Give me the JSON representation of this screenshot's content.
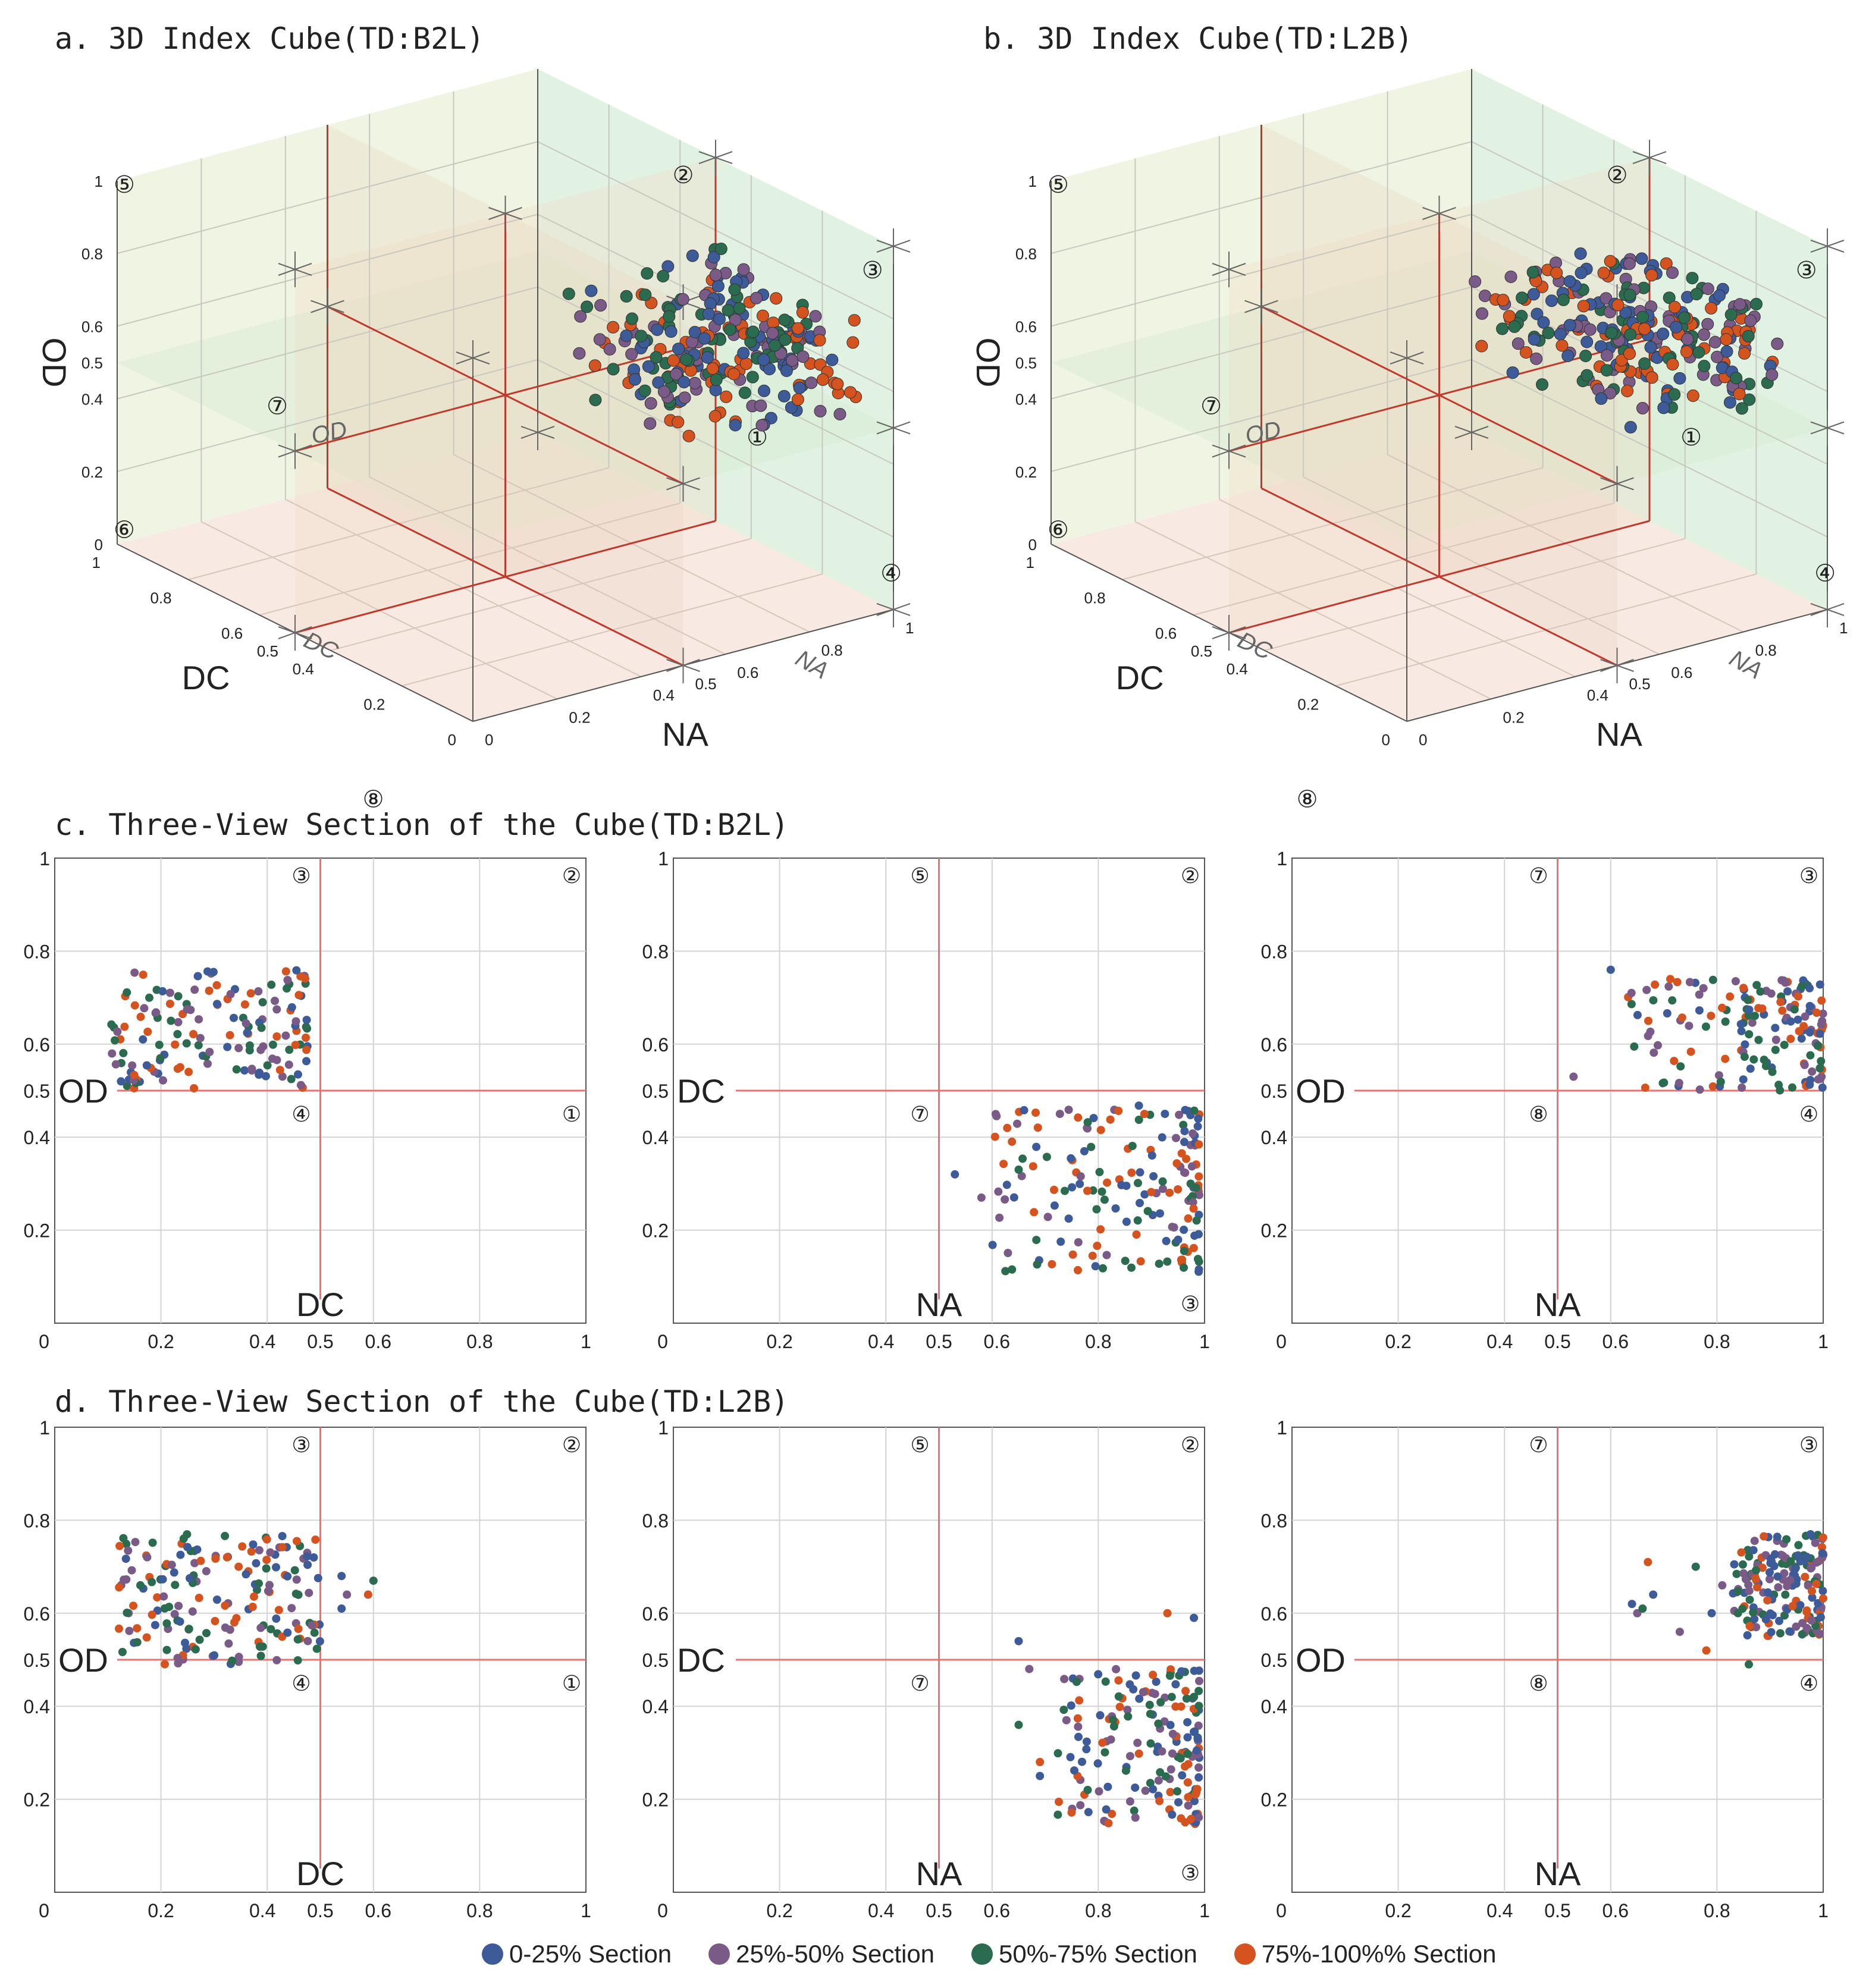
{
  "panels": {
    "a_title": "a. 3D Index Cube(TD:B2L)",
    "b_title": "b. 3D Index Cube(TD:L2B)",
    "c_title": "c. Three-View Section of the Cube(TD:B2L)",
    "d_title": "d. Three-View Section of the Cube(TD:L2B)"
  },
  "legend": [
    {
      "label": "0-25% Section",
      "color": "#3d5a99"
    },
    {
      "label": "25%-50% Section",
      "color": "#7a5a86"
    },
    {
      "label": "50%-75% Section",
      "color": "#2b6b4f"
    },
    {
      "label": "75%-100%% Section",
      "color": "#d4531e"
    }
  ],
  "chart_data": [
    {
      "id": "a",
      "type": "scatter",
      "subtype": "3d-cube",
      "axes": [
        "NA",
        "DC",
        "OD"
      ],
      "axis_labels": {
        "x": "NA",
        "y": "DC",
        "z": "OD"
      },
      "inner_labels": {
        "od": "OD",
        "dc": "DC",
        "na": "NA"
      },
      "ticks": {
        "z": [
          "0",
          "0.2",
          "0.4",
          "0.5",
          "0.6",
          "0.8",
          "1"
        ],
        "y": [
          "0",
          "0.2",
          "0.4",
          "0.5",
          "0.6",
          "0.8",
          "1"
        ],
        "x": [
          "0",
          "0.2",
          "0.4",
          "0.5",
          "0.6",
          "0.8",
          "1"
        ]
      },
      "octants": [
        "①",
        "②",
        "③",
        "④",
        "⑤",
        "⑥",
        "⑦",
        "⑧"
      ],
      "range": [
        0,
        1
      ],
      "split": 0.5,
      "cluster": {
        "NA": [
          0.6,
          1.0
        ],
        "DC": [
          0.1,
          0.5
        ],
        "OD": [
          0.5,
          0.76
        ]
      }
    },
    {
      "id": "b",
      "type": "scatter",
      "subtype": "3d-cube",
      "axes": [
        "NA",
        "DC",
        "OD"
      ],
      "axis_labels": {
        "x": "NA",
        "y": "DC",
        "z": "OD"
      },
      "inner_labels": {
        "od": "OD",
        "dc": "DC",
        "na": "NA"
      },
      "ticks": {
        "z": [
          "0",
          "0.2",
          "0.4",
          "0.5",
          "0.6",
          "0.8",
          "1"
        ],
        "y": [
          "0",
          "0.2",
          "0.4",
          "0.5",
          "0.6",
          "0.8",
          "1"
        ],
        "x": [
          "0",
          "0.2",
          "0.4",
          "0.5",
          "0.6",
          "0.8",
          "1"
        ]
      },
      "octants": [
        "①",
        "②",
        "③",
        "④",
        "⑤",
        "⑥",
        "⑦",
        "⑧"
      ],
      "range": [
        0,
        1
      ],
      "split": 0.5,
      "cluster": {
        "NA": [
          0.65,
          1.0
        ],
        "DC": [
          0.12,
          0.6
        ],
        "OD": [
          0.5,
          0.76
        ]
      }
    },
    {
      "id": "c1",
      "type": "scatter",
      "xlabel": "DC",
      "ylabel": "OD",
      "xlim": [
        0,
        1
      ],
      "ylim": [
        0,
        1
      ],
      "xticks": [
        "0",
        "0.2",
        "0.4",
        "0.5",
        "0.6",
        "0.8",
        "1"
      ],
      "yticks": [
        "1",
        "0.8",
        "0.6",
        "0.5",
        "0.4",
        "0.2"
      ],
      "quadrants": {
        "tl": "③",
        "tr": "②",
        "bl": "④",
        "br": "①"
      },
      "cluster": {
        "x": [
          0.1,
          0.48
        ],
        "y": [
          0.5,
          0.76
        ],
        "n": 150
      }
    },
    {
      "id": "c2",
      "type": "scatter",
      "xlabel": "NA",
      "ylabel": "DC",
      "xlim": [
        0,
        1
      ],
      "ylim": [
        0,
        1
      ],
      "xticks": [
        "0",
        "0.2",
        "0.4",
        "0.5",
        "0.6",
        "0.8",
        "1"
      ],
      "yticks": [
        "1",
        "0.8",
        "0.6",
        "0.5",
        "0.4",
        "0.2"
      ],
      "quadrants": {
        "tl": "⑤",
        "tr": "②",
        "bl": "⑦",
        "br": "③"
      },
      "cluster": {
        "x": [
          0.6,
          0.99
        ],
        "y": [
          0.11,
          0.47
        ],
        "n": 170
      },
      "outliers": [
        {
          "x": 0.53,
          "y": 0.32
        },
        {
          "x": 0.58,
          "y": 0.27
        },
        {
          "x": 0.65,
          "y": 0.33
        }
      ]
    },
    {
      "id": "c3",
      "type": "scatter",
      "xlabel": "NA",
      "ylabel": "OD",
      "xlim": [
        0,
        1
      ],
      "ylim": [
        0,
        1
      ],
      "xticks": [
        "0",
        "0.2",
        "0.4",
        "0.5",
        "0.6",
        "0.8",
        "1"
      ],
      "yticks": [
        "1",
        "0.8",
        "0.6",
        "0.5",
        "0.4",
        "0.2"
      ],
      "quadrants": {
        "tl": "⑦",
        "tr": "③",
        "bl": "⑧",
        "br": "④"
      },
      "cluster": {
        "x": [
          0.63,
          1.0
        ],
        "y": [
          0.5,
          0.74
        ],
        "n": 160
      },
      "outliers": [
        {
          "x": 0.6,
          "y": 0.76
        },
        {
          "x": 0.53,
          "y": 0.53
        }
      ]
    },
    {
      "id": "d1",
      "type": "scatter",
      "xlabel": "DC",
      "ylabel": "OD",
      "xlim": [
        0,
        1
      ],
      "ylim": [
        0,
        1
      ],
      "xticks": [
        "0",
        "0.2",
        "0.4",
        "0.5",
        "0.6",
        "0.8",
        "1"
      ],
      "yticks": [
        "1",
        "0.8",
        "0.6",
        "0.5",
        "0.4",
        "0.2"
      ],
      "quadrants": {
        "tl": "③",
        "tr": "②",
        "bl": "④",
        "br": "①"
      },
      "cluster": {
        "x": [
          0.12,
          0.5
        ],
        "y": [
          0.49,
          0.77
        ],
        "n": 170
      },
      "outliers": [
        {
          "x": 0.54,
          "y": 0.68
        },
        {
          "x": 0.55,
          "y": 0.64
        },
        {
          "x": 0.6,
          "y": 0.67
        },
        {
          "x": 0.59,
          "y": 0.64
        },
        {
          "x": 0.54,
          "y": 0.61
        }
      ]
    },
    {
      "id": "d2",
      "type": "scatter",
      "xlabel": "NA",
      "ylabel": "DC",
      "xlim": [
        0,
        1
      ],
      "ylim": [
        0,
        1
      ],
      "xticks": [
        "0",
        "0.2",
        "0.4",
        "0.5",
        "0.6",
        "0.8",
        "1"
      ],
      "yticks": [
        "1",
        "0.8",
        "0.6",
        "0.5",
        "0.4",
        "0.2"
      ],
      "quadrants": {
        "tl": "⑤",
        "tr": "②",
        "bl": "⑦",
        "br": "③"
      },
      "cluster": {
        "x": [
          0.72,
          0.99
        ],
        "y": [
          0.14,
          0.48
        ],
        "n": 170
      },
      "outliers": [
        {
          "x": 0.65,
          "y": 0.54
        },
        {
          "x": 0.67,
          "y": 0.48
        },
        {
          "x": 0.65,
          "y": 0.36
        },
        {
          "x": 0.69,
          "y": 0.28
        },
        {
          "x": 0.69,
          "y": 0.25
        },
        {
          "x": 0.74,
          "y": 0.37
        },
        {
          "x": 0.78,
          "y": 0.22
        },
        {
          "x": 0.93,
          "y": 0.6
        },
        {
          "x": 0.98,
          "y": 0.59
        }
      ]
    },
    {
      "id": "d3",
      "type": "scatter",
      "xlabel": "NA",
      "ylabel": "OD",
      "xlim": [
        0,
        1
      ],
      "ylim": [
        0,
        1
      ],
      "xticks": [
        "0",
        "0.2",
        "0.4",
        "0.5",
        "0.6",
        "0.8",
        "1"
      ],
      "yticks": [
        "1",
        "0.8",
        "0.6",
        "0.5",
        "0.4",
        "0.2"
      ],
      "quadrants": {
        "tl": "⑦",
        "tr": "③",
        "bl": "⑧",
        "br": "④"
      },
      "cluster": {
        "x": [
          0.83,
          1.0
        ],
        "y": [
          0.55,
          0.77
        ],
        "n": 170
      },
      "outliers": [
        {
          "x": 0.64,
          "y": 0.62
        },
        {
          "x": 0.65,
          "y": 0.6
        },
        {
          "x": 0.66,
          "y": 0.61
        },
        {
          "x": 0.67,
          "y": 0.71
        },
        {
          "x": 0.68,
          "y": 0.64
        },
        {
          "x": 0.73,
          "y": 0.56
        },
        {
          "x": 0.76,
          "y": 0.7
        },
        {
          "x": 0.78,
          "y": 0.52
        },
        {
          "x": 0.79,
          "y": 0.6
        },
        {
          "x": 0.81,
          "y": 0.66
        },
        {
          "x": 0.86,
          "y": 0.49
        }
      ]
    }
  ]
}
